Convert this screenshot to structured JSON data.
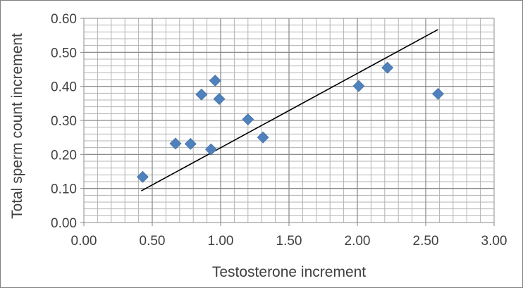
{
  "chart_data": {
    "type": "scatter",
    "title": "",
    "xlabel": "Testosterone increment",
    "ylabel": "Total sperm count increment",
    "xlim": [
      0.0,
      3.0
    ],
    "ylim": [
      0.0,
      0.6
    ],
    "x_ticks": [
      "0.00",
      "0.50",
      "1.00",
      "1.50",
      "2.00",
      "2.50",
      "3.00"
    ],
    "y_ticks": [
      "0.00",
      "0.10",
      "0.20",
      "0.30",
      "0.40",
      "0.50",
      "0.60"
    ],
    "x_minor_step": 0.1,
    "y_minor_step": 0.02,
    "grid": true,
    "legend": "none",
    "series": [
      {
        "marker": "diamond",
        "color": "#4f81bd",
        "points": [
          {
            "x": 0.43,
            "y": 0.134
          },
          {
            "x": 0.67,
            "y": 0.232
          },
          {
            "x": 0.78,
            "y": 0.231
          },
          {
            "x": 0.86,
            "y": 0.376
          },
          {
            "x": 0.93,
            "y": 0.215
          },
          {
            "x": 0.96,
            "y": 0.417
          },
          {
            "x": 0.99,
            "y": 0.363
          },
          {
            "x": 1.2,
            "y": 0.303
          },
          {
            "x": 1.31,
            "y": 0.25
          },
          {
            "x": 2.01,
            "y": 0.401
          },
          {
            "x": 2.22,
            "y": 0.455
          },
          {
            "x": 2.59,
            "y": 0.378
          }
        ]
      }
    ],
    "trendline": {
      "type": "linear",
      "color": "#000000",
      "from": {
        "x": 0.42,
        "y": 0.093
      },
      "to": {
        "x": 2.59,
        "y": 0.567
      }
    }
  }
}
